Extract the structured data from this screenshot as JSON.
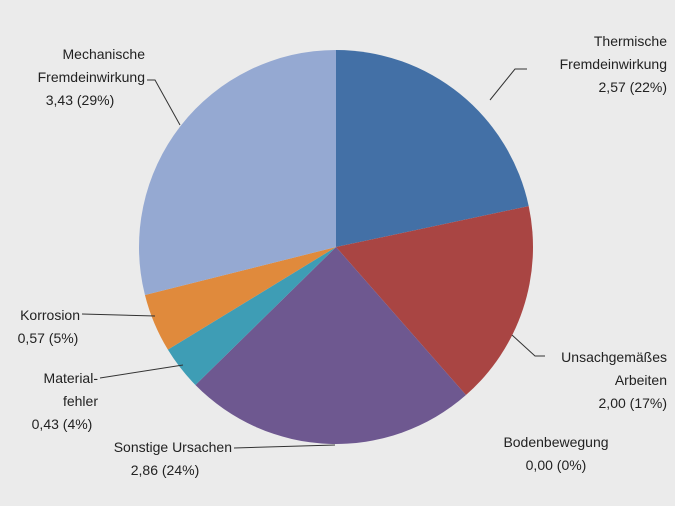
{
  "chart_data": {
    "type": "pie",
    "categories": [
      "Thermische\nFremdeinwirkung",
      "Unsachgemäßes\nArbeiten",
      "Bodenbewegung",
      "Sonstige Ursachen",
      "Material-\nfehler",
      "Korrosion",
      "Mechanische\nFremdeinwirkung"
    ],
    "values": [
      2.57,
      2.0,
      0.0,
      2.86,
      0.43,
      0.57,
      3.43
    ],
    "value_labels": [
      "2,57 (22%)",
      "2,00 (17%)",
      "0,00 (0%)",
      "2,86 (24%)",
      "0,43 (4%)",
      "0,57 (5%)",
      "3,43 (29%)"
    ],
    "colors": [
      "#4370a6",
      "#a94543",
      "#7f9a48",
      "#6e5890",
      "#3e9db5",
      "#e08a3c",
      "#95a9d2"
    ]
  }
}
